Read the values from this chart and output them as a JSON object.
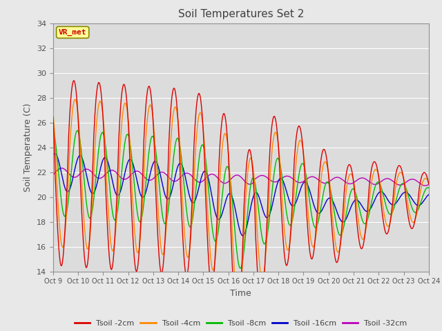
{
  "title": "Soil Temperatures Set 2",
  "xlabel": "Time",
  "ylabel": "Soil Temperature (C)",
  "ylim": [
    14,
    34
  ],
  "yticks": [
    14,
    16,
    18,
    20,
    22,
    24,
    26,
    28,
    30,
    32,
    34
  ],
  "xtick_labels": [
    "Oct 9",
    "Oct 10",
    "Oct 11",
    "Oct 12",
    "Oct 13",
    "Oct 14",
    "Oct 15",
    "Oct 16",
    "Oct 17",
    "Oct 18",
    "Oct 19",
    "Oct 20",
    "Oct 21",
    "Oct 22",
    "Oct 23",
    "Oct 24"
  ],
  "legend_label": "VR_met",
  "series_labels": [
    "Tsoil -2cm",
    "Tsoil -4cm",
    "Tsoil -8cm",
    "Tsoil -16cm",
    "Tsoil -32cm"
  ],
  "series_colors": [
    "#dd0000",
    "#ff8800",
    "#00bb00",
    "#0000cc",
    "#bb00bb"
  ],
  "fig_facecolor": "#e8e8e8",
  "ax_facecolor": "#dcdcdc",
  "grid_color": "#ffffff",
  "title_color": "#404040",
  "annotation_box_color": "#ffff99",
  "annotation_text_color": "#cc0000",
  "annotation_border_color": "#888800"
}
